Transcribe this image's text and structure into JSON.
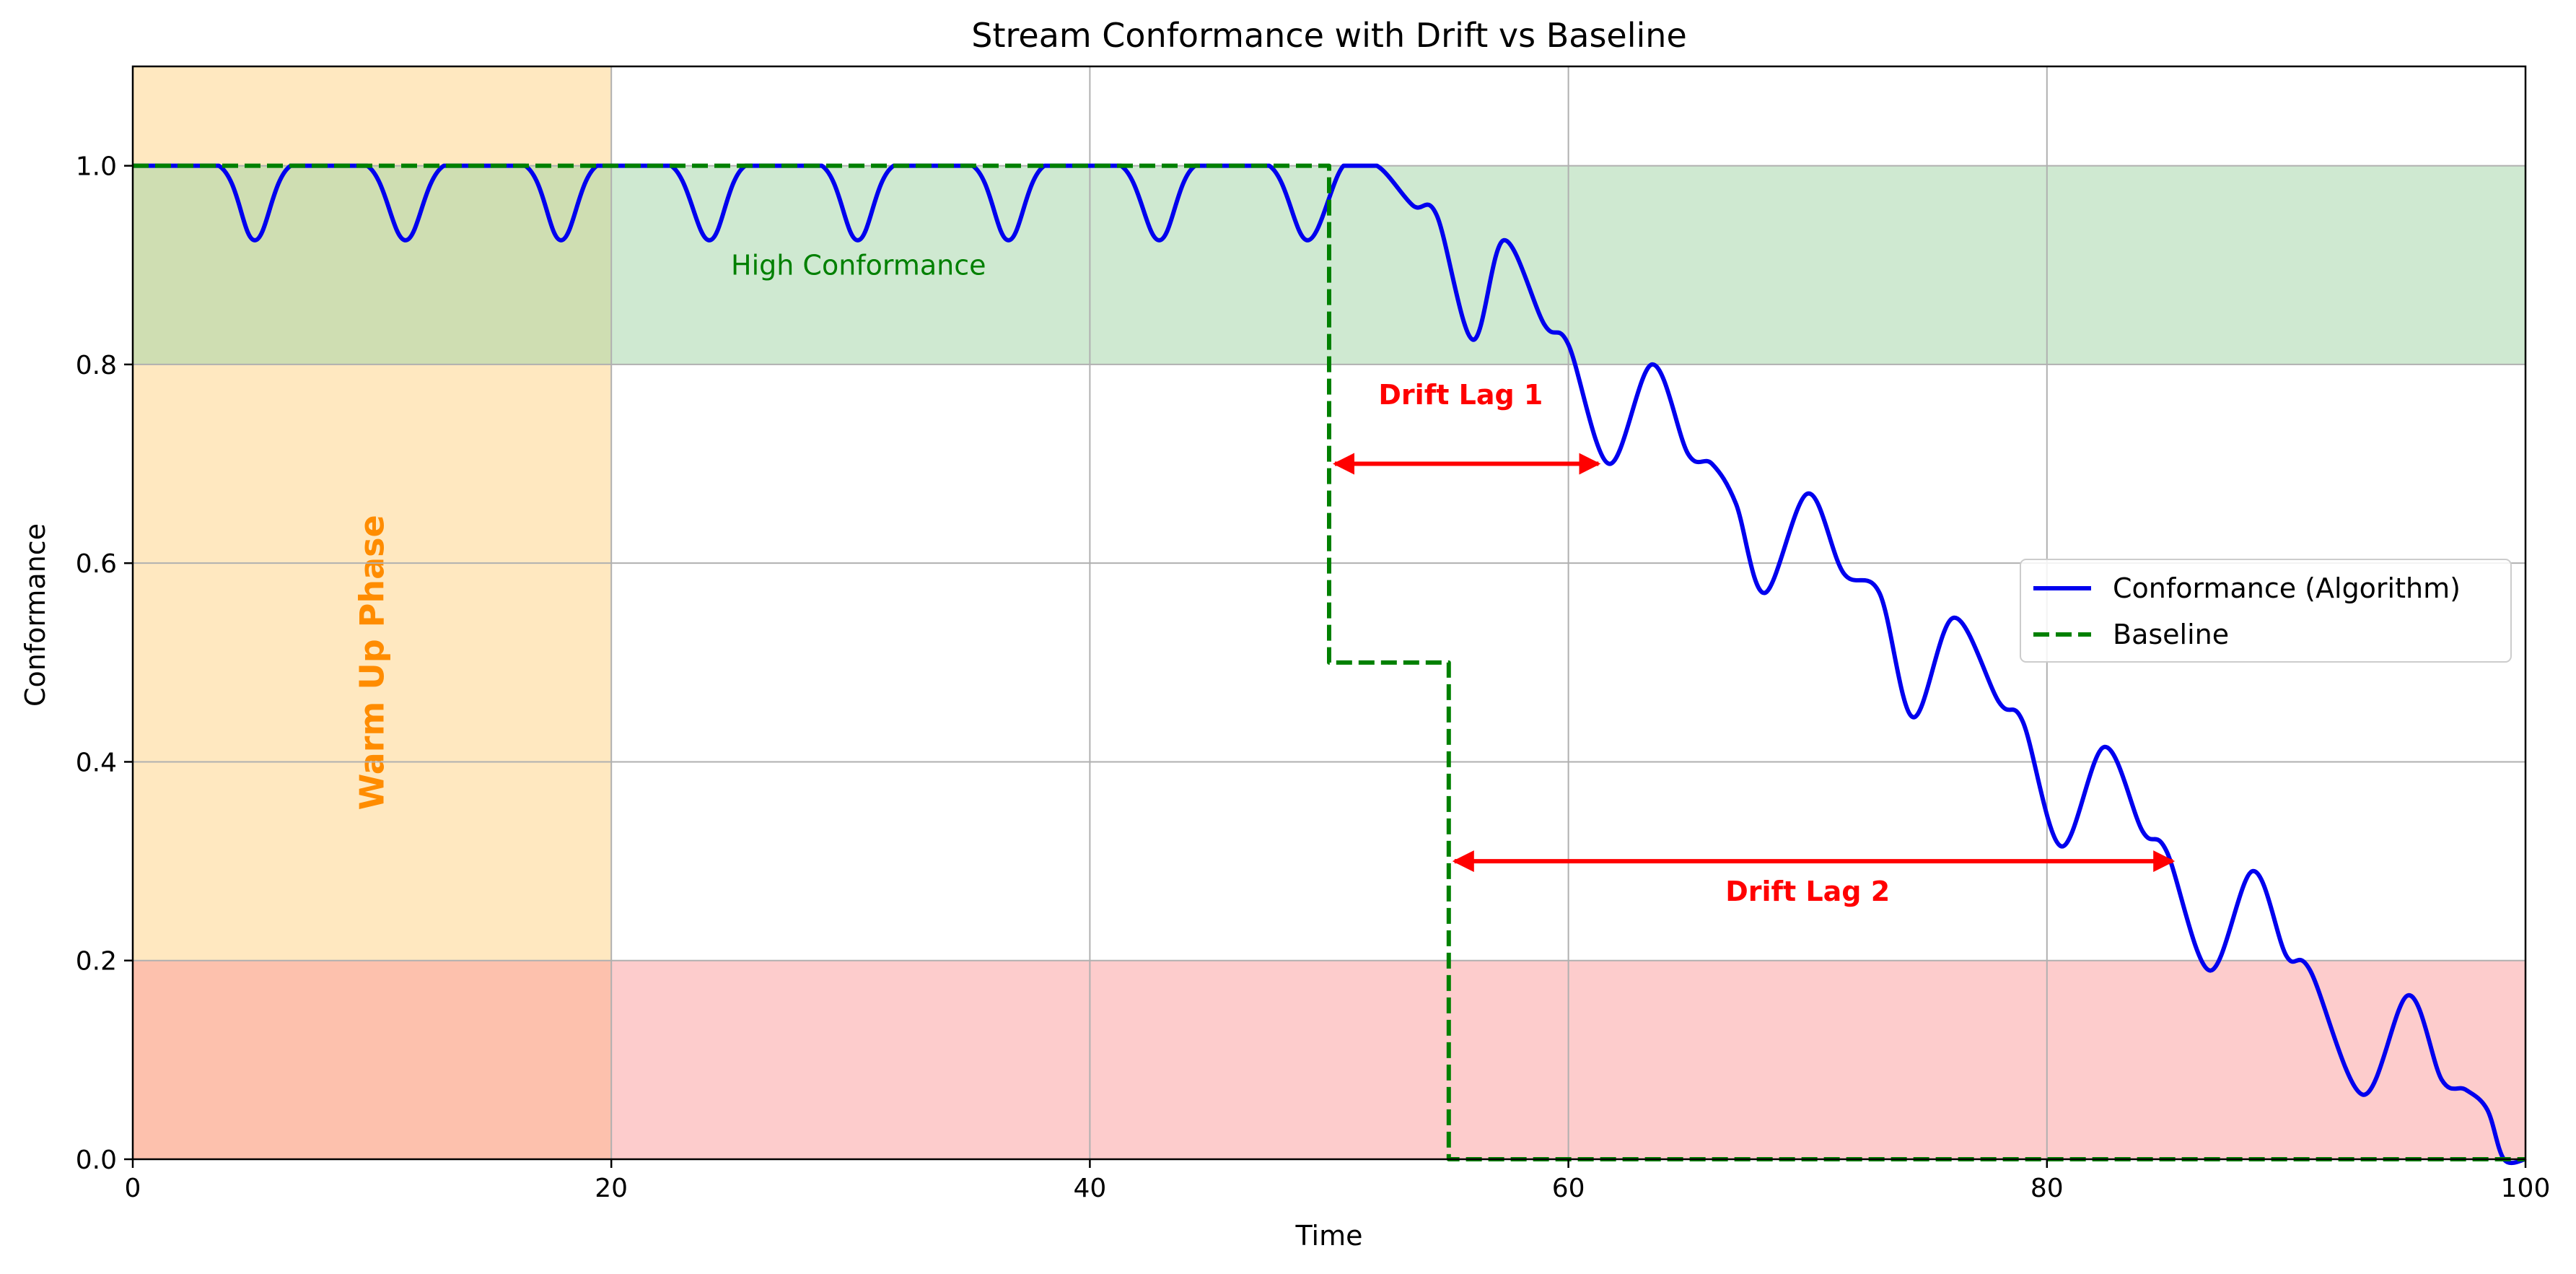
{
  "chart_data": {
    "type": "line",
    "title": "Stream Conformance with Drift vs Baseline",
    "xlabel": "Time",
    "ylabel": "Conformance",
    "xlim": [
      0,
      100
    ],
    "ylim": [
      0,
      1.1
    ],
    "x_ticks": [
      0,
      20,
      40,
      60,
      80,
      100
    ],
    "x_tick_labels": [
      "0",
      "20",
      "40",
      "60",
      "80",
      "100"
    ],
    "y_ticks": [
      0.0,
      0.2,
      0.4,
      0.6,
      0.8,
      1.0
    ],
    "y_tick_labels": [
      "0.0",
      "0.2",
      "0.4",
      "0.6",
      "0.8",
      "1.0"
    ],
    "grid": true,
    "legend_position": "center-right",
    "series": [
      {
        "name": "Conformance (Algorithm)",
        "style": "solid",
        "color": "#0000ee",
        "x": [
          0,
          3.6,
          5.1,
          6.6,
          9.8,
          11.4,
          13.0,
          16.4,
          17.9,
          19.4,
          22.5,
          24.1,
          25.6,
          28.8,
          30.3,
          31.8,
          35.1,
          36.6,
          38.1,
          41.3,
          42.9,
          44.4,
          47.5,
          49.1,
          50.6,
          52.0,
          53.5,
          54.5,
          56.0,
          57.3,
          59.0,
          60.0,
          61.7,
          63.5,
          65.0,
          66.0,
          67.0,
          68.2,
          70.0,
          71.5,
          73.0,
          74.4,
          76.1,
          78.0,
          79.0,
          80.6,
          82.4,
          84.0,
          85.0,
          86.8,
          88.6,
          90.0,
          91.0,
          93.2,
          95.1,
          96.5,
          97.5,
          98.4,
          99.1,
          100
        ],
        "y": [
          1.0,
          1.0,
          0.925,
          1.0,
          1.0,
          0.925,
          1.0,
          1.0,
          0.925,
          1.0,
          1.0,
          0.925,
          1.0,
          1.0,
          0.925,
          1.0,
          1.0,
          0.925,
          1.0,
          1.0,
          0.925,
          1.0,
          1.0,
          0.925,
          1.0,
          1.0,
          0.96,
          0.95,
          0.825,
          0.925,
          0.84,
          0.82,
          0.7,
          0.8,
          0.71,
          0.7,
          0.66,
          0.57,
          0.67,
          0.59,
          0.57,
          0.445,
          0.545,
          0.46,
          0.44,
          0.315,
          0.415,
          0.33,
          0.31,
          0.19,
          0.29,
          0.205,
          0.19,
          0.065,
          0.165,
          0.08,
          0.07,
          0.05,
          0.0,
          0.0
        ]
      },
      {
        "name": "Baseline",
        "style": "dashed",
        "color": "#008000",
        "x": [
          0,
          50,
          50,
          55,
          55,
          100
        ],
        "y": [
          1.0,
          1.0,
          0.5,
          0.5,
          0.0,
          0.0
        ]
      }
    ],
    "regions": [
      {
        "axis": "x",
        "from": 0,
        "to": 20,
        "color": "#ffe4b5",
        "label": "Warm Up Phase",
        "label_color": "#ff8c00"
      },
      {
        "axis": "y",
        "from": 0.8,
        "to": 1.0,
        "color": "#9fd3a3",
        "label": "High Conformance",
        "label_color": "#008000"
      },
      {
        "axis": "y",
        "from": 0.0,
        "to": 0.2,
        "color": "#fc9a9a",
        "label": "",
        "label_color": "#ff0000"
      }
    ],
    "annotations": [
      {
        "label": "Drift Lag 1",
        "from_x": 50,
        "to_x": 61.5,
        "y": 0.7,
        "label_x": 55.5,
        "label_y": 0.76,
        "color": "#ff0000"
      },
      {
        "label": "Drift Lag 2",
        "from_x": 55,
        "to_x": 85.5,
        "y": 0.3,
        "label_x": 70.0,
        "label_y": 0.26,
        "color": "#ff0000"
      }
    ]
  }
}
